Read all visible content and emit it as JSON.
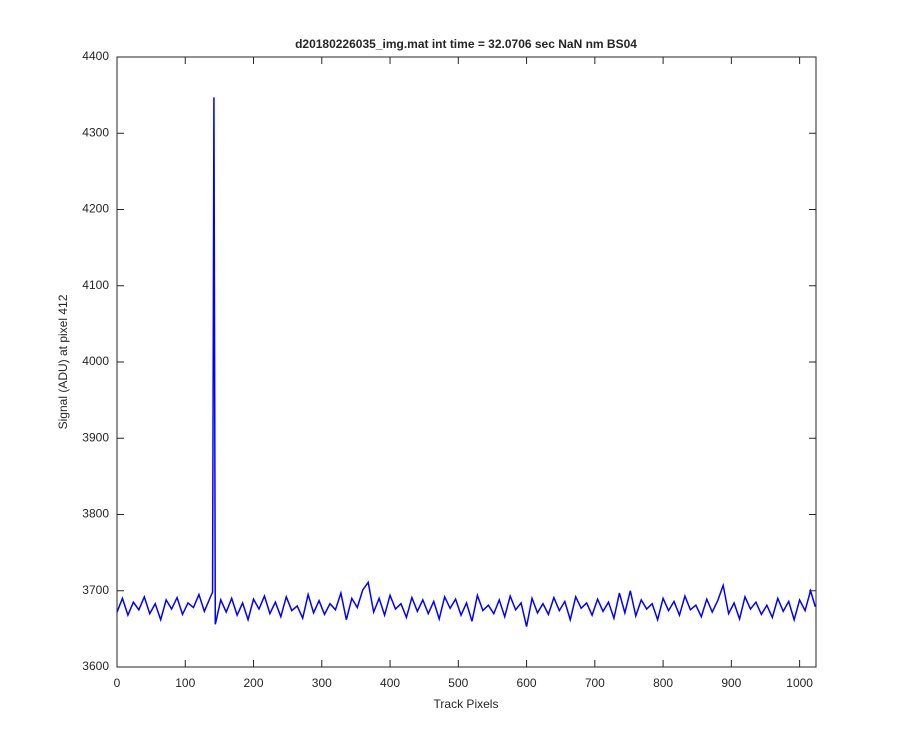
{
  "chart_data": {
    "type": "line",
    "title": "d20180226035_img.mat int time = 32.0706 sec  NaN nm BS04",
    "x_label": "Track Pixels",
    "y_label": "Signal (ADU) at pixel 412",
    "xlim": [
      0,
      1024
    ],
    "ylim": [
      3600,
      4400
    ],
    "xticks": [
      0,
      100,
      200,
      300,
      400,
      500,
      600,
      700,
      800,
      900,
      1000
    ],
    "yticks": [
      3600,
      3700,
      3800,
      3900,
      4000,
      4100,
      4200,
      4300,
      4400
    ],
    "grid": false,
    "x": [
      0,
      8,
      16,
      24,
      32,
      40,
      48,
      56,
      64,
      72,
      80,
      88,
      96,
      104,
      112,
      120,
      128,
      136,
      140,
      142,
      144,
      152,
      160,
      168,
      176,
      184,
      192,
      200,
      208,
      216,
      224,
      232,
      240,
      248,
      256,
      264,
      272,
      280,
      288,
      296,
      304,
      312,
      320,
      328,
      336,
      344,
      352,
      360,
      368,
      376,
      384,
      392,
      400,
      408,
      416,
      424,
      432,
      440,
      448,
      456,
      464,
      472,
      480,
      488,
      496,
      504,
      512,
      520,
      528,
      536,
      544,
      552,
      560,
      568,
      576,
      584,
      592,
      600,
      608,
      616,
      624,
      632,
      640,
      648,
      656,
      664,
      672,
      680,
      688,
      696,
      704,
      712,
      720,
      728,
      736,
      744,
      752,
      760,
      768,
      776,
      784,
      792,
      800,
      808,
      816,
      824,
      832,
      840,
      848,
      856,
      864,
      872,
      880,
      888,
      896,
      904,
      912,
      920,
      928,
      936,
      944,
      952,
      960,
      968,
      976,
      984,
      992,
      1000,
      1008,
      1016,
      1023
    ],
    "series": [
      {
        "name": "signal",
        "color": "#0000ff",
        "values": [
          3672,
          3690,
          3668,
          3685,
          3675,
          3692,
          3670,
          3683,
          3662,
          3688,
          3676,
          3691,
          3669,
          3684,
          3678,
          3695,
          3673,
          3690,
          3698,
          4347,
          3656,
          3688,
          3672,
          3690,
          3668,
          3684,
          3662,
          3689,
          3676,
          3693,
          3670,
          3685,
          3666,
          3692,
          3674,
          3680,
          3664,
          3695,
          3671,
          3687,
          3669,
          3683,
          3675,
          3697,
          3662,
          3690,
          3678,
          3701,
          3711,
          3672,
          3690,
          3668,
          3694,
          3676,
          3683,
          3665,
          3691,
          3673,
          3688,
          3670,
          3686,
          3663,
          3692,
          3677,
          3689,
          3668,
          3684,
          3660,
          3694,
          3674,
          3681,
          3670,
          3688,
          3666,
          3693,
          3675,
          3684,
          3653,
          3690,
          3671,
          3683,
          3669,
          3691,
          3674,
          3686,
          3662,
          3692,
          3677,
          3684,
          3668,
          3689,
          3673,
          3685,
          3664,
          3697,
          3671,
          3700,
          3667,
          3688,
          3676,
          3683,
          3662,
          3690,
          3674,
          3686,
          3668,
          3693,
          3675,
          3681,
          3666,
          3689,
          3672,
          3687,
          3707,
          3670,
          3684,
          3663,
          3692,
          3676,
          3685,
          3669,
          3681,
          3665,
          3690,
          3673,
          3686,
          3662,
          3688,
          3674,
          3700,
          3679
        ]
      }
    ]
  }
}
